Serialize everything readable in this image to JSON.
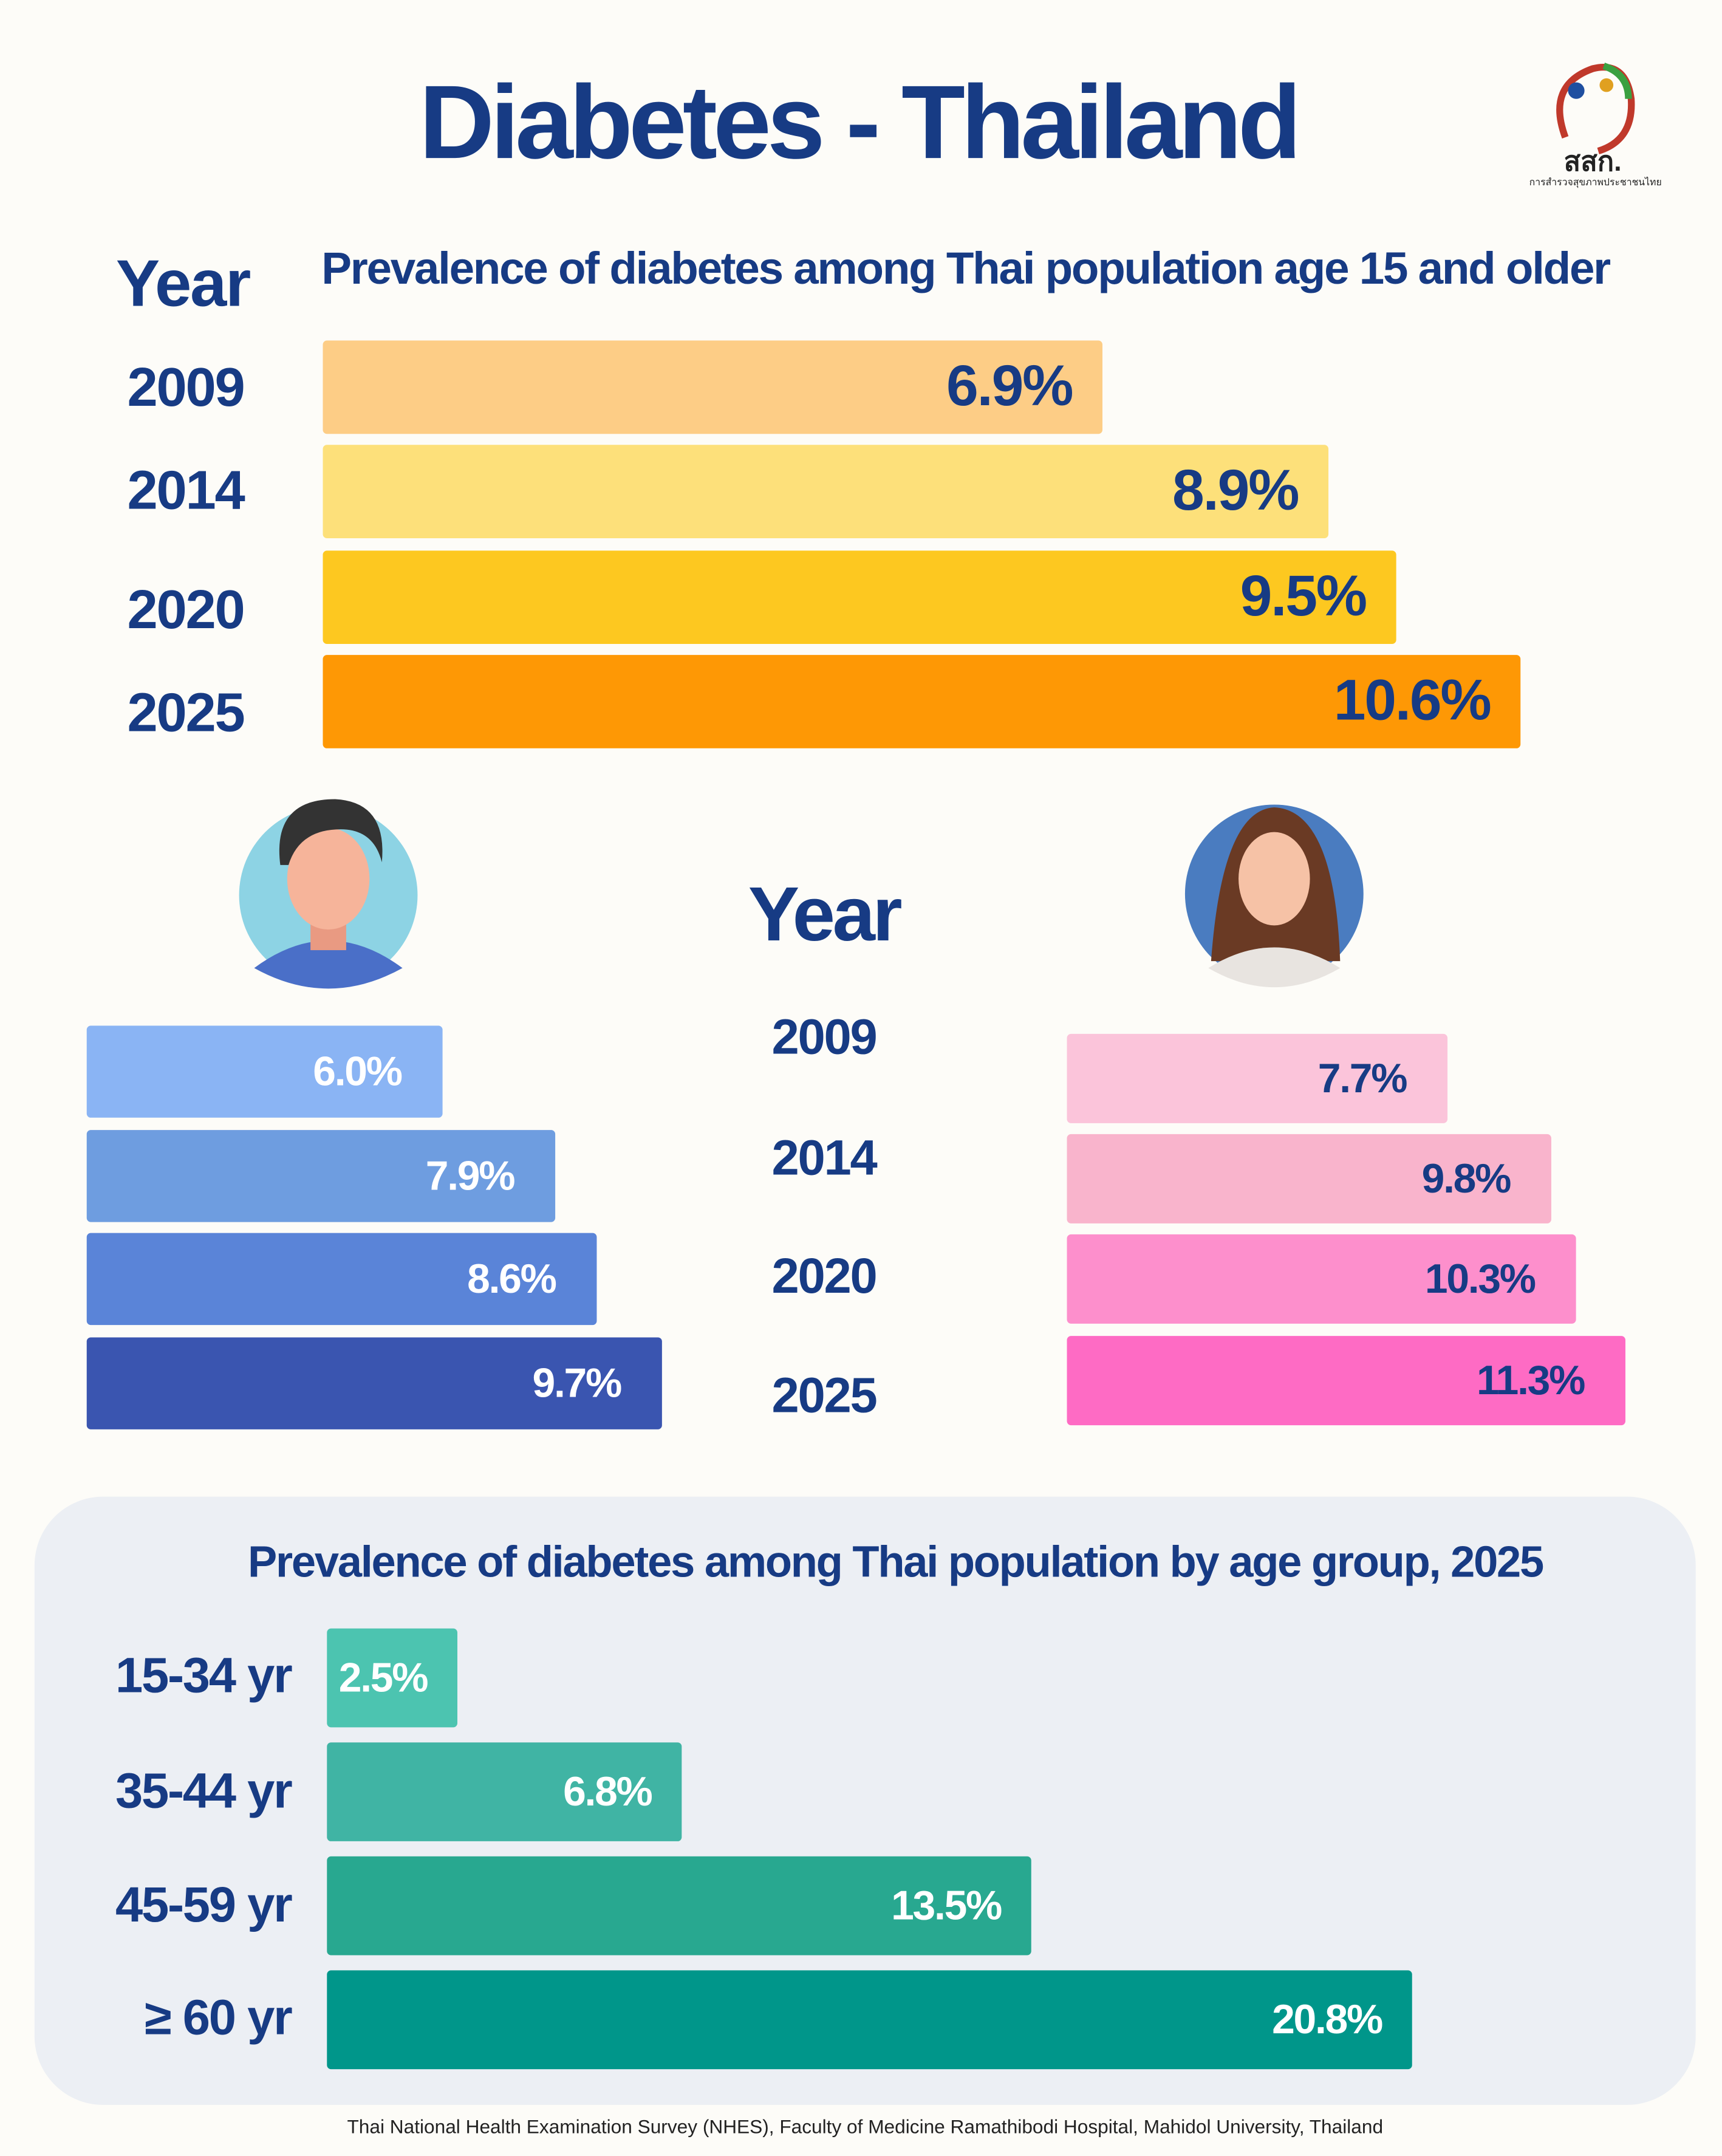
{
  "title": "Diabetes - Thailand",
  "logo": {
    "name": "สสก.",
    "subtitle": "การสำรวจสุขภาพประชาชนไทย"
  },
  "source": "Thai National Health Examination Survey (NHES), Faculty of Medicine Ramathibodi Hospital, Mahidol University, Thailand",
  "chart_data": [
    {
      "type": "bar",
      "title": "Prevalence of  diabetes among Thai population age 15 and older",
      "y_label": "Year",
      "categories": [
        "2009",
        "2014",
        "2020",
        "2025"
      ],
      "values": [
        6.9,
        8.9,
        9.5,
        10.6
      ],
      "value_labels": [
        "6.9%",
        "8.9%",
        "9.5%",
        "10.6%"
      ],
      "colors": [
        "#fdcd86",
        "#fde07a",
        "#fdc820",
        "#fe9805"
      ]
    },
    {
      "type": "bar",
      "y_label": "Year",
      "categories": [
        "2009",
        "2014",
        "2020",
        "2025"
      ],
      "series": [
        {
          "values": [
            6.0,
            7.9,
            8.6,
            9.7
          ],
          "value_labels": [
            "6.0%",
            "7.9%",
            "8.6%",
            "9.7%"
          ],
          "colors": [
            "#8ab4f4",
            "#6e9de0",
            "#5a84d8",
            "#3a55b0"
          ]
        },
        {
          "values": [
            7.7,
            9.8,
            10.3,
            11.3
          ],
          "value_labels": [
            "7.7%",
            "9.8%",
            "10.3%",
            "11.3%"
          ],
          "colors": [
            "#fbc4da",
            "#f9b4cc",
            "#fd8fcc",
            "#fe6bc4"
          ]
        }
      ]
    },
    {
      "type": "bar",
      "title": "Prevalence of  diabetes among Thai population by age group, 2025",
      "categories": [
        "15-34 yr",
        "35-44 yr",
        "45-59 yr",
        "≥ 60 yr"
      ],
      "values": [
        2.5,
        6.8,
        13.5,
        20.8
      ],
      "value_labels": [
        "2.5%",
        "6.8%",
        "13.5%",
        "20.8%"
      ],
      "colors": [
        "#4cc4b0",
        "#40b4a4",
        "#28a890",
        "#00968a"
      ]
    }
  ]
}
